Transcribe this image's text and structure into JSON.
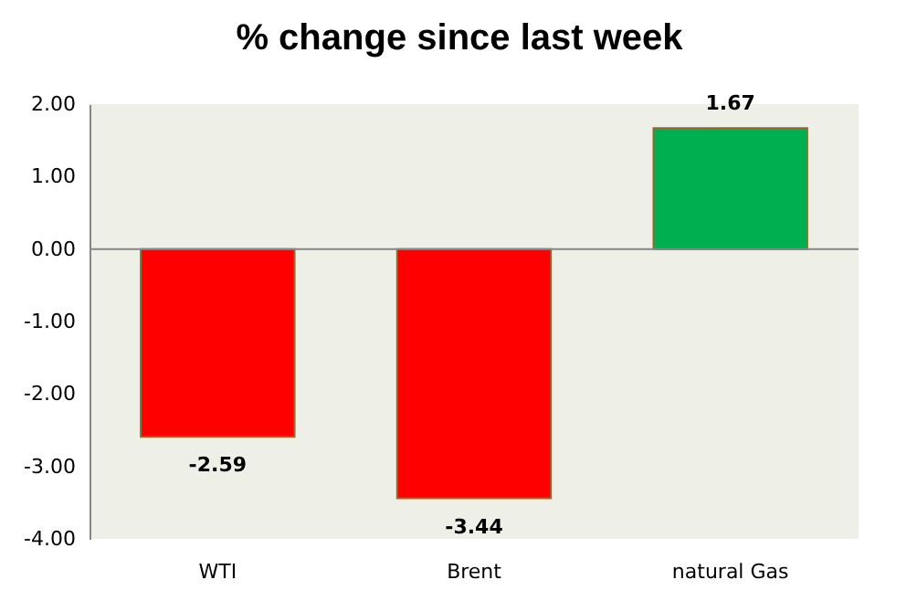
{
  "chart_data": {
    "type": "bar",
    "title": "% change since last week",
    "categories": [
      "WTI",
      "Brent",
      "natural Gas"
    ],
    "values": [
      -2.59,
      -3.44,
      1.67
    ],
    "colors": [
      "#ff0000",
      "#ff0000",
      "#00b050"
    ],
    "ylim": [
      -4,
      2
    ],
    "yticks": [
      {
        "value": -4,
        "label": "-4.00"
      },
      {
        "value": -3,
        "label": "-3.00"
      },
      {
        "value": -2,
        "label": "-2.00"
      },
      {
        "value": -1,
        "label": "-1.00"
      },
      {
        "value": 0,
        "label": "0.00"
      },
      {
        "value": 1,
        "label": "1.00"
      },
      {
        "value": 2,
        "label": "2.00"
      }
    ],
    "data_labels": true,
    "ref_lines": [
      {
        "axis": "y",
        "value": 0,
        "color": "#868686"
      }
    ]
  }
}
